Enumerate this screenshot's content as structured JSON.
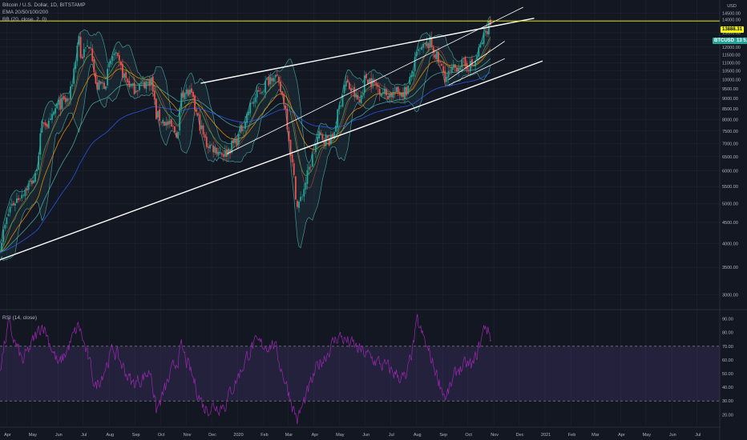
{
  "header": {
    "symbol_line": "Bitcoin / U.S. Dollar, 1D, BITSTAMP",
    "ema_label": "EMA 20/50/100/200",
    "bb_label": "BB (20, close, 2, 0)",
    "rsi_label": "RSI (14, close)"
  },
  "badges": {
    "level": "13888.31",
    "ticker": "BTCUSD",
    "price": "13 5…"
  },
  "colors": {
    "background": "#131722",
    "grid": "#1f2432",
    "up_candle": "#26a69a",
    "down_candle": "#ef5350",
    "trendline": "#ffffff",
    "horizontal_level": "#ffff00",
    "bb_band": "#4db6ac",
    "ema_blue": "#2962ff",
    "ema_green": "#4caf50",
    "ema_red": "#ef5350",
    "rsi_line": "#9c27b0",
    "rsi_zone": "#7e57c2"
  },
  "chart_data": [
    {
      "type": "line",
      "subtype": "candlestick",
      "y_axis_ticks": [
        "3000.00",
        "3500.00",
        "4000.00",
        "4500.00",
        "5000.00",
        "5500.00",
        "6000.00",
        "6500.00",
        "7000.00",
        "7500.00",
        "8000.00",
        "8500.00",
        "9000.00",
        "9500.00",
        "10000.00",
        "10500.00",
        "11000.00",
        "11500.00",
        "12000.00",
        "12500.00",
        "13000.00",
        "14000.00",
        "14500.00"
      ],
      "y_axis_top_label": "USD",
      "ylim": [
        2800,
        15200
      ],
      "y_scale": "log",
      "x_axis_ticks": [
        "Apr",
        "May",
        "Jun",
        "Jul",
        "Aug",
        "Sep",
        "Oct",
        "Nov",
        "Dec",
        "2020",
        "Feb",
        "Mar",
        "Apr",
        "May",
        "Jun",
        "Jul",
        "Aug",
        "Sep",
        "Oct",
        "Nov",
        "Dec",
        "2021",
        "Feb",
        "Mar",
        "Apr",
        "May",
        "Jun",
        "Jul"
      ],
      "x_range": [
        "2019-03-24",
        "2021-07-28"
      ],
      "grid": true,
      "price_series": {
        "name": "BTCUSD",
        "anchors": [
          [
            "2019-03-24",
            3950
          ],
          [
            "2019-04-05",
            4900
          ],
          [
            "2019-05-05",
            5800
          ],
          [
            "2019-05-14",
            8000
          ],
          [
            "2019-05-22",
            7700
          ],
          [
            "2019-05-30",
            8600
          ],
          [
            "2019-06-15",
            9000
          ],
          [
            "2019-06-26",
            12900
          ],
          [
            "2019-06-27",
            11200
          ],
          [
            "2019-07-10",
            12400
          ],
          [
            "2019-07-16",
            9600
          ],
          [
            "2019-07-27",
            9800
          ],
          [
            "2019-08-06",
            11600
          ],
          [
            "2019-08-20",
            10100
          ],
          [
            "2019-08-29",
            9500
          ],
          [
            "2019-09-20",
            10000
          ],
          [
            "2019-09-26",
            8200
          ],
          [
            "2019-10-22",
            7400
          ],
          [
            "2019-10-26",
            9400
          ],
          [
            "2019-11-06",
            9200
          ],
          [
            "2019-11-24",
            7000
          ],
          [
            "2019-12-17",
            6600
          ],
          [
            "2020-01-01",
            7200
          ],
          [
            "2020-01-18",
            8800
          ],
          [
            "2020-02-13",
            10400
          ],
          [
            "2020-02-26",
            8800
          ],
          [
            "2020-03-12",
            4900
          ],
          [
            "2020-03-16",
            5100
          ],
          [
            "2020-04-06",
            7300
          ],
          [
            "2020-04-22",
            7100
          ],
          [
            "2020-05-08",
            9900
          ],
          [
            "2020-05-25",
            8800
          ],
          [
            "2020-06-01",
            10200
          ],
          [
            "2020-06-26",
            9200
          ],
          [
            "2020-07-21",
            9400
          ],
          [
            "2020-08-02",
            11600
          ],
          [
            "2020-08-17",
            12300
          ],
          [
            "2020-09-05",
            10100
          ],
          [
            "2020-09-20",
            10900
          ],
          [
            "2020-10-08",
            10800
          ],
          [
            "2020-10-21",
            12900
          ],
          [
            "2020-10-27",
            13800
          ],
          [
            "2020-10-29",
            13500
          ]
        ]
      },
      "indicators": [
        "EMA 20",
        "EMA 50",
        "EMA 100",
        "EMA 200",
        "Bollinger Bands (20, 2)"
      ],
      "trendlines": [
        {
          "kind": "support",
          "from": [
            "2019-03-24",
            3650
          ],
          "to": [
            "2020-12-29",
            11100
          ]
        },
        {
          "kind": "resistance",
          "from": [
            "2019-11-18",
            9800
          ],
          "to": [
            "2020-12-19",
            14100
          ]
        },
        {
          "kind": "wedge-upper",
          "from": [
            "2019-12-19",
            6600
          ],
          "to": [
            "2020-12-06",
            15000
          ]
        },
        {
          "kind": "channel-upper",
          "from": [
            "2020-09-08",
            10000
          ],
          "to": [
            "2020-11-14",
            12400
          ]
        },
        {
          "kind": "channel-lower",
          "from": [
            "2020-09-08",
            9700
          ],
          "to": [
            "2020-11-14",
            11250
          ]
        }
      ],
      "horizontal_levels": [
        13888.31
      ]
    },
    {
      "type": "line",
      "name": "RSI",
      "y_axis_ticks": [
        "20.00",
        "30.00",
        "40.00",
        "50.00",
        "60.00",
        "70.00",
        "80.00",
        "90.00"
      ],
      "ylim": [
        12,
        95
      ],
      "overbought": 70,
      "oversold": 30,
      "anchors": [
        [
          "2019-03-24",
          55
        ],
        [
          "2019-04-03",
          85
        ],
        [
          "2019-04-20",
          58
        ],
        [
          "2019-05-14",
          87
        ],
        [
          "2019-06-02",
          55
        ],
        [
          "2019-06-26",
          85
        ],
        [
          "2019-07-16",
          40
        ],
        [
          "2019-08-06",
          68
        ],
        [
          "2019-08-29",
          42
        ],
        [
          "2019-09-20",
          52
        ],
        [
          "2019-09-26",
          22
        ],
        [
          "2019-10-26",
          68
        ],
        [
          "2019-11-22",
          25
        ],
        [
          "2019-12-17",
          28
        ],
        [
          "2020-01-18",
          70
        ],
        [
          "2020-02-13",
          72
        ],
        [
          "2020-03-12",
          16
        ],
        [
          "2020-04-06",
          56
        ],
        [
          "2020-04-30",
          78
        ],
        [
          "2020-06-01",
          64
        ],
        [
          "2020-07-20",
          45
        ],
        [
          "2020-08-02",
          87
        ],
        [
          "2020-09-05",
          32
        ],
        [
          "2020-09-20",
          54
        ],
        [
          "2020-10-08",
          56
        ],
        [
          "2020-10-22",
          86
        ],
        [
          "2020-10-29",
          76
        ]
      ]
    }
  ]
}
